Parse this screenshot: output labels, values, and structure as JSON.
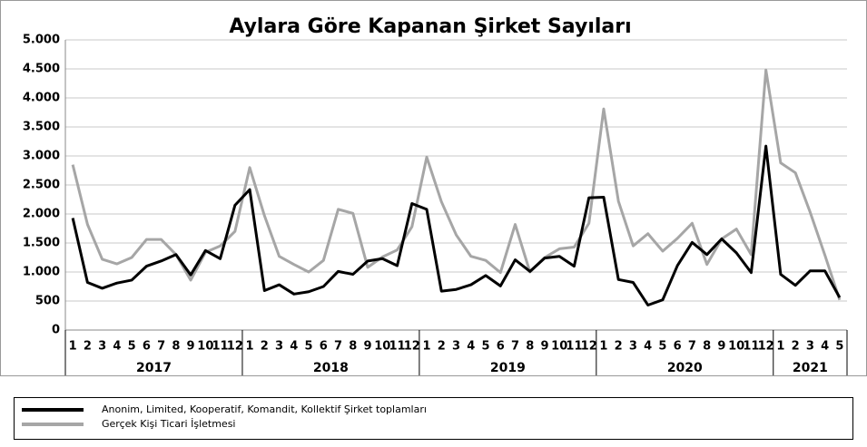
{
  "chart_data": {
    "type": "line",
    "title": "Aylara Göre Kapanan Şirket Sayıları",
    "categories": [
      "1",
      "2",
      "3",
      "4",
      "5",
      "6",
      "7",
      "8",
      "9",
      "10",
      "11",
      "12",
      "1",
      "2",
      "3",
      "4",
      "5",
      "6",
      "7",
      "8",
      "9",
      "10",
      "11",
      "12",
      "1",
      "2",
      "3",
      "4",
      "5",
      "6",
      "7",
      "8",
      "9",
      "10",
      "11",
      "12",
      "1",
      "2",
      "3",
      "4",
      "5",
      "6",
      "7",
      "8",
      "9",
      "10",
      "11",
      "12",
      "1",
      "2",
      "3",
      "4",
      "5"
    ],
    "groups": [
      "2017",
      "2018",
      "2019",
      "2020",
      "2021"
    ],
    "series": [
      {
        "name": "Anonim, Limited, Kooperatif, Komandit, Kollektif  Şirket toplamları",
        "color": "#000000",
        "values": [
          1930,
          820,
          720,
          810,
          860,
          1100,
          1190,
          1300,
          950,
          1370,
          1230,
          2150,
          2420,
          680,
          780,
          620,
          660,
          750,
          1010,
          960,
          1190,
          1230,
          1110,
          2180,
          2080,
          670,
          700,
          780,
          940,
          760,
          1210,
          1010,
          1240,
          1270,
          1100,
          2280,
          2290,
          870,
          820,
          430,
          520,
          1110,
          1510,
          1300,
          1570,
          1330,
          990,
          3170,
          960,
          770,
          1020,
          1020,
          560
        ]
      },
      {
        "name": "Gerçek Kişi Ticari İşletmesi",
        "color": "#a6a6a6",
        "values": [
          2850,
          1820,
          1220,
          1140,
          1250,
          1560,
          1560,
          1300,
          860,
          1340,
          1450,
          1700,
          2800,
          1970,
          1270,
          1130,
          1000,
          1200,
          2080,
          2010,
          1080,
          1260,
          1380,
          1780,
          2980,
          2210,
          1640,
          1270,
          1200,
          990,
          1820,
          1000,
          1250,
          1400,
          1430,
          1840,
          3810,
          2220,
          1450,
          1660,
          1360,
          1580,
          1840,
          1130,
          1570,
          1740,
          1300,
          4480,
          2880,
          2710,
          2030,
          1290,
          520
        ]
      }
    ],
    "ylim": [
      0,
      5000
    ],
    "yticks": [
      0,
      {
        "value": 500,
        "label": "500"
      },
      {
        "value": 1000,
        "label": "1.000"
      },
      {
        "value": 1500,
        "label": "1.500"
      },
      {
        "value": 2000,
        "label": "2.000"
      },
      {
        "value": 2500,
        "label": "2.500"
      },
      {
        "value": 3000,
        "label": "3.000"
      },
      {
        "value": 3500,
        "label": "3.500"
      },
      {
        "value": 4000,
        "label": "4.000"
      },
      {
        "value": 4500,
        "label": "4.500"
      },
      {
        "value": 5000,
        "label": "5.000"
      }
    ],
    "grid": true
  }
}
